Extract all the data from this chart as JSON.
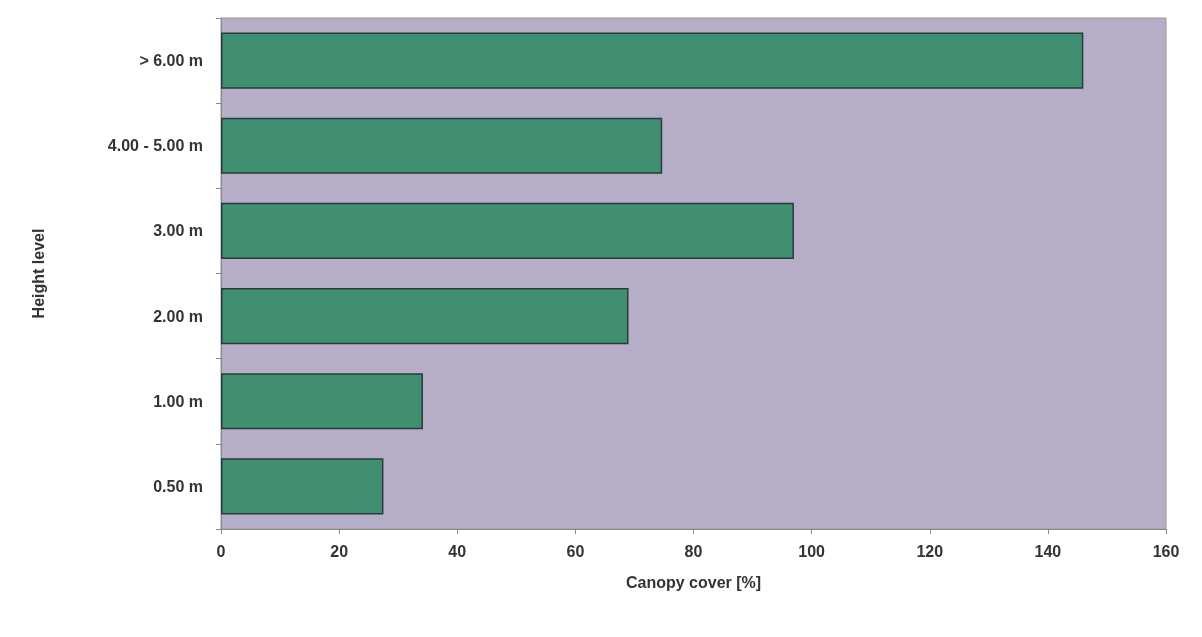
{
  "chart_data": {
    "type": "bar",
    "orientation": "horizontal",
    "xlabel": "Canopy cover [%]",
    "ylabel": "Height level",
    "categories": [
      "> 6.00 m",
      "4.00 - 5.00 m",
      "3.00 m",
      "2.00 m",
      "1.00 m",
      "0.50 m"
    ],
    "values": [
      146,
      74.7,
      97,
      69,
      34.2,
      27.5
    ],
    "color": "#3f8f70",
    "xlim": [
      0,
      160
    ],
    "xticks": [
      0,
      20,
      40,
      60,
      80,
      100,
      120,
      140,
      160
    ],
    "grid": false
  }
}
